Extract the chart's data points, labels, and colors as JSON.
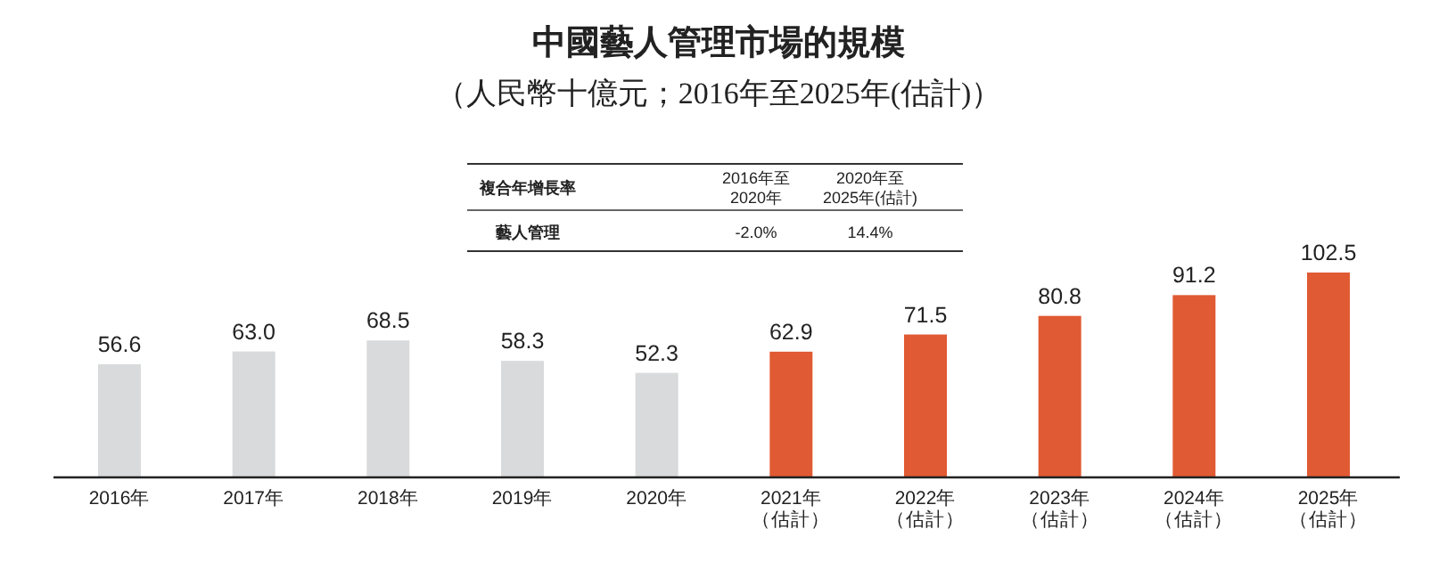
{
  "chart_data": {
    "type": "bar",
    "title": "中國藝人管理市場的規模",
    "subtitle": "（人民幣十億元；2016年至2025年(估計)）",
    "categories": [
      "2016年",
      "2017年",
      "2018年",
      "2019年",
      "2020年",
      "2021年（估計）",
      "2022年（估計）",
      "2023年（估計）",
      "2024年（估計）",
      "2025年（估計）"
    ],
    "value_labels": [
      "56.6",
      "63.0",
      "68.5",
      "58.3",
      "52.3",
      "62.9",
      "71.5",
      "80.8",
      "91.2",
      "102.5"
    ],
    "values": [
      56.6,
      63.0,
      68.5,
      58.3,
      52.3,
      62.9,
      71.5,
      80.8,
      91.2,
      102.5
    ],
    "colors": [
      "#d9dadb",
      "#d9dadb",
      "#d9dadb",
      "#d9dadb",
      "#d9dadb",
      "#e05a33",
      "#e05a33",
      "#e05a33",
      "#e05a33",
      "#e05a33"
    ],
    "annotations": [
      "複合年增長率",
      "2016年至\n2020年",
      "2020年至\n2025年(估計)",
      "藝人管理",
      "-2.0%",
      "14.4%"
    ]
  }
}
